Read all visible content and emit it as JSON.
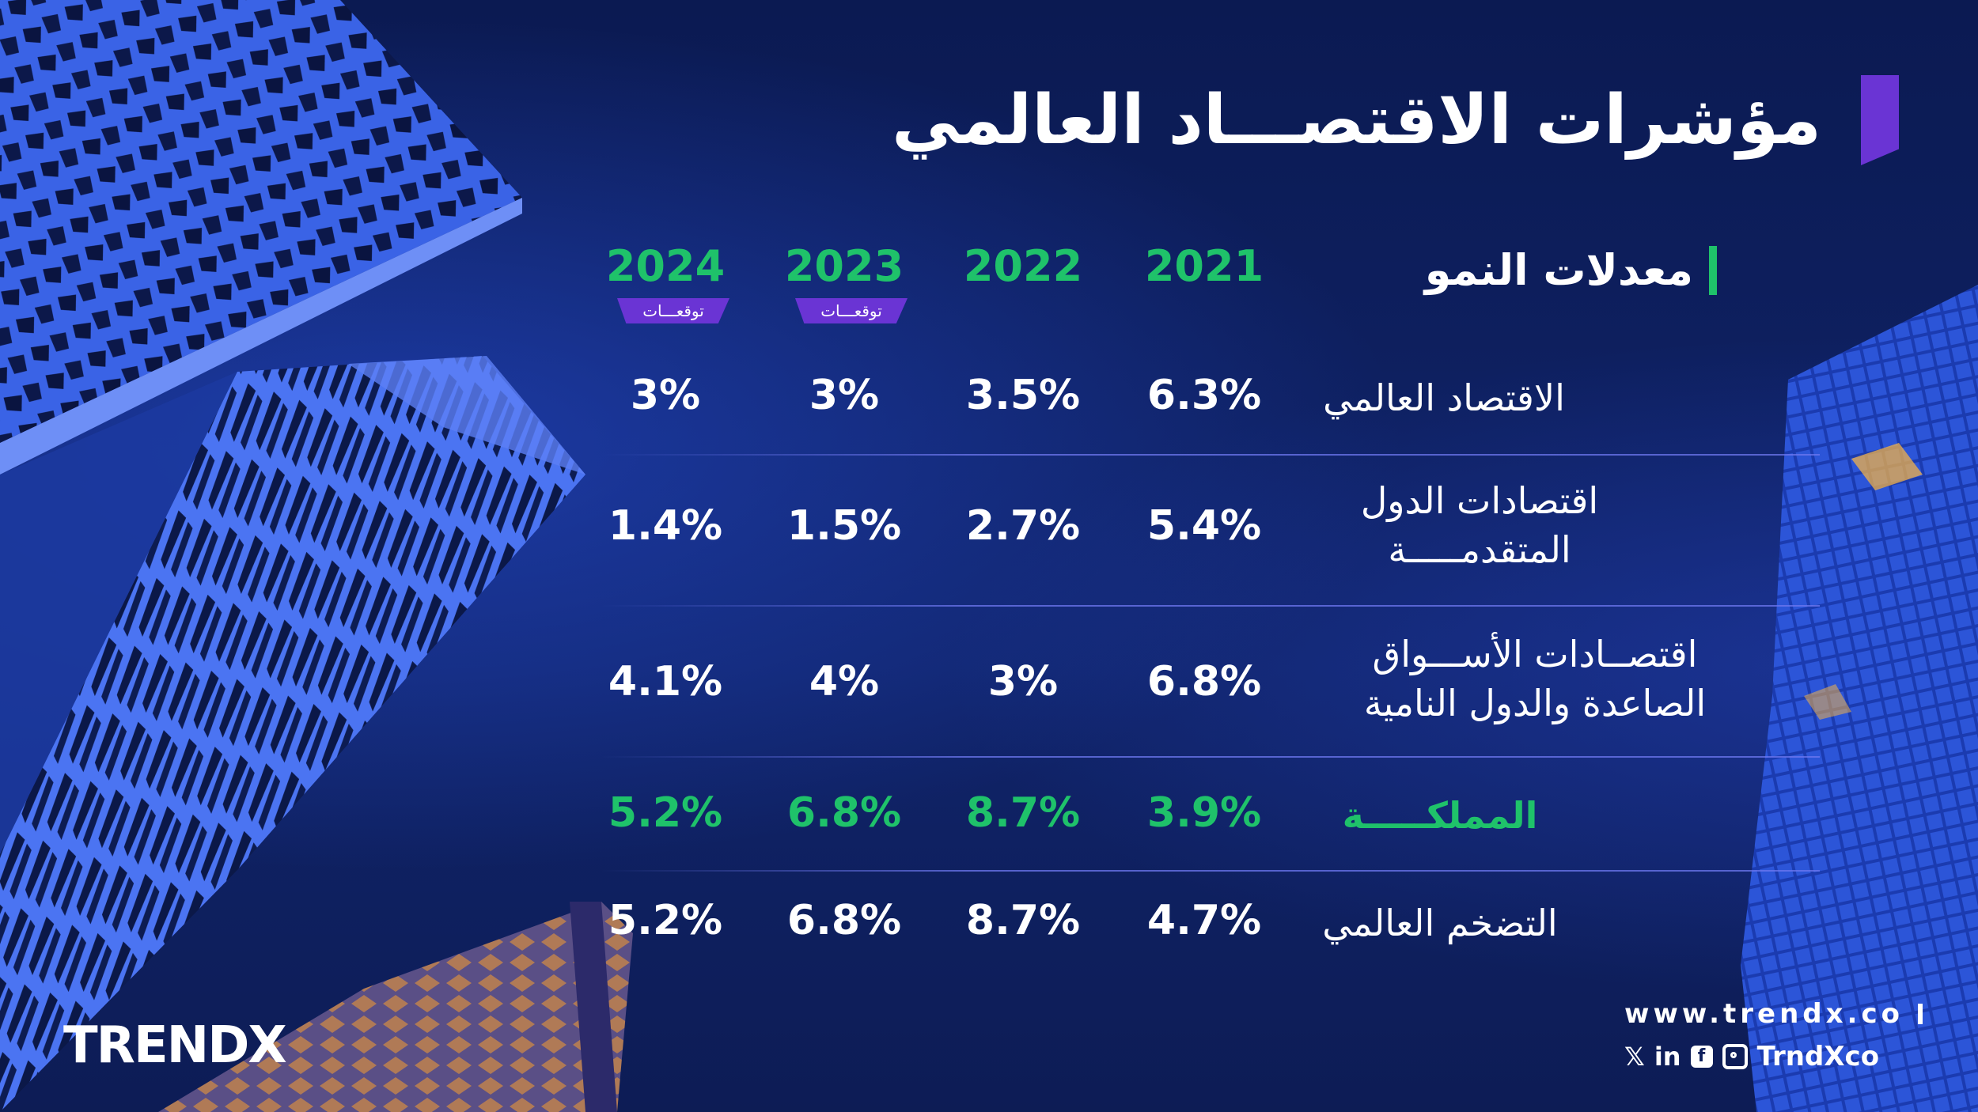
{
  "title": "مؤشرات الاقتصـــاد العالمي",
  "colors": {
    "accent_green": "#1fc26a",
    "accent_purple": "#6a34d4",
    "background": "#0e1f5c"
  },
  "chart_data": {
    "type": "table",
    "header": "معدلات النمو",
    "columns": [
      {
        "year": "2024",
        "badge": "توقعـــات"
      },
      {
        "year": "2023",
        "badge": "توقعـــات"
      },
      {
        "year": "2022",
        "badge": ""
      },
      {
        "year": "2021",
        "badge": ""
      }
    ],
    "rows": [
      {
        "label": "الاقتصاد العالمي",
        "highlight": false,
        "values": [
          "3%",
          "3%",
          "3.5%",
          "6.3%"
        ]
      },
      {
        "label": "اقتصادات الدول المتقدمـــــة",
        "highlight": false,
        "values": [
          "1.4%",
          "1.5%",
          "2.7%",
          "5.4%"
        ]
      },
      {
        "label": "اقتصــادات الأســـواق الصاعدة والدول النامية",
        "highlight": false,
        "values": [
          "4.1%",
          "4%",
          "3%",
          "6.8%"
        ]
      },
      {
        "label": "المملكـــــة",
        "highlight": true,
        "values": [
          "5.2%",
          "6.8%",
          "8.7%",
          "3.9%"
        ]
      },
      {
        "label": "التضخم العالمي",
        "highlight": false,
        "values": [
          "5.2%",
          "6.8%",
          "8.7%",
          "4.7%"
        ]
      }
    ]
  },
  "footer": {
    "logo": "TRENDX",
    "url": "www.trendx.co",
    "social_handle": "TrndXco",
    "social_icons": [
      "x-icon",
      "linkedin-icon",
      "facebook-icon",
      "instagram-icon"
    ]
  }
}
